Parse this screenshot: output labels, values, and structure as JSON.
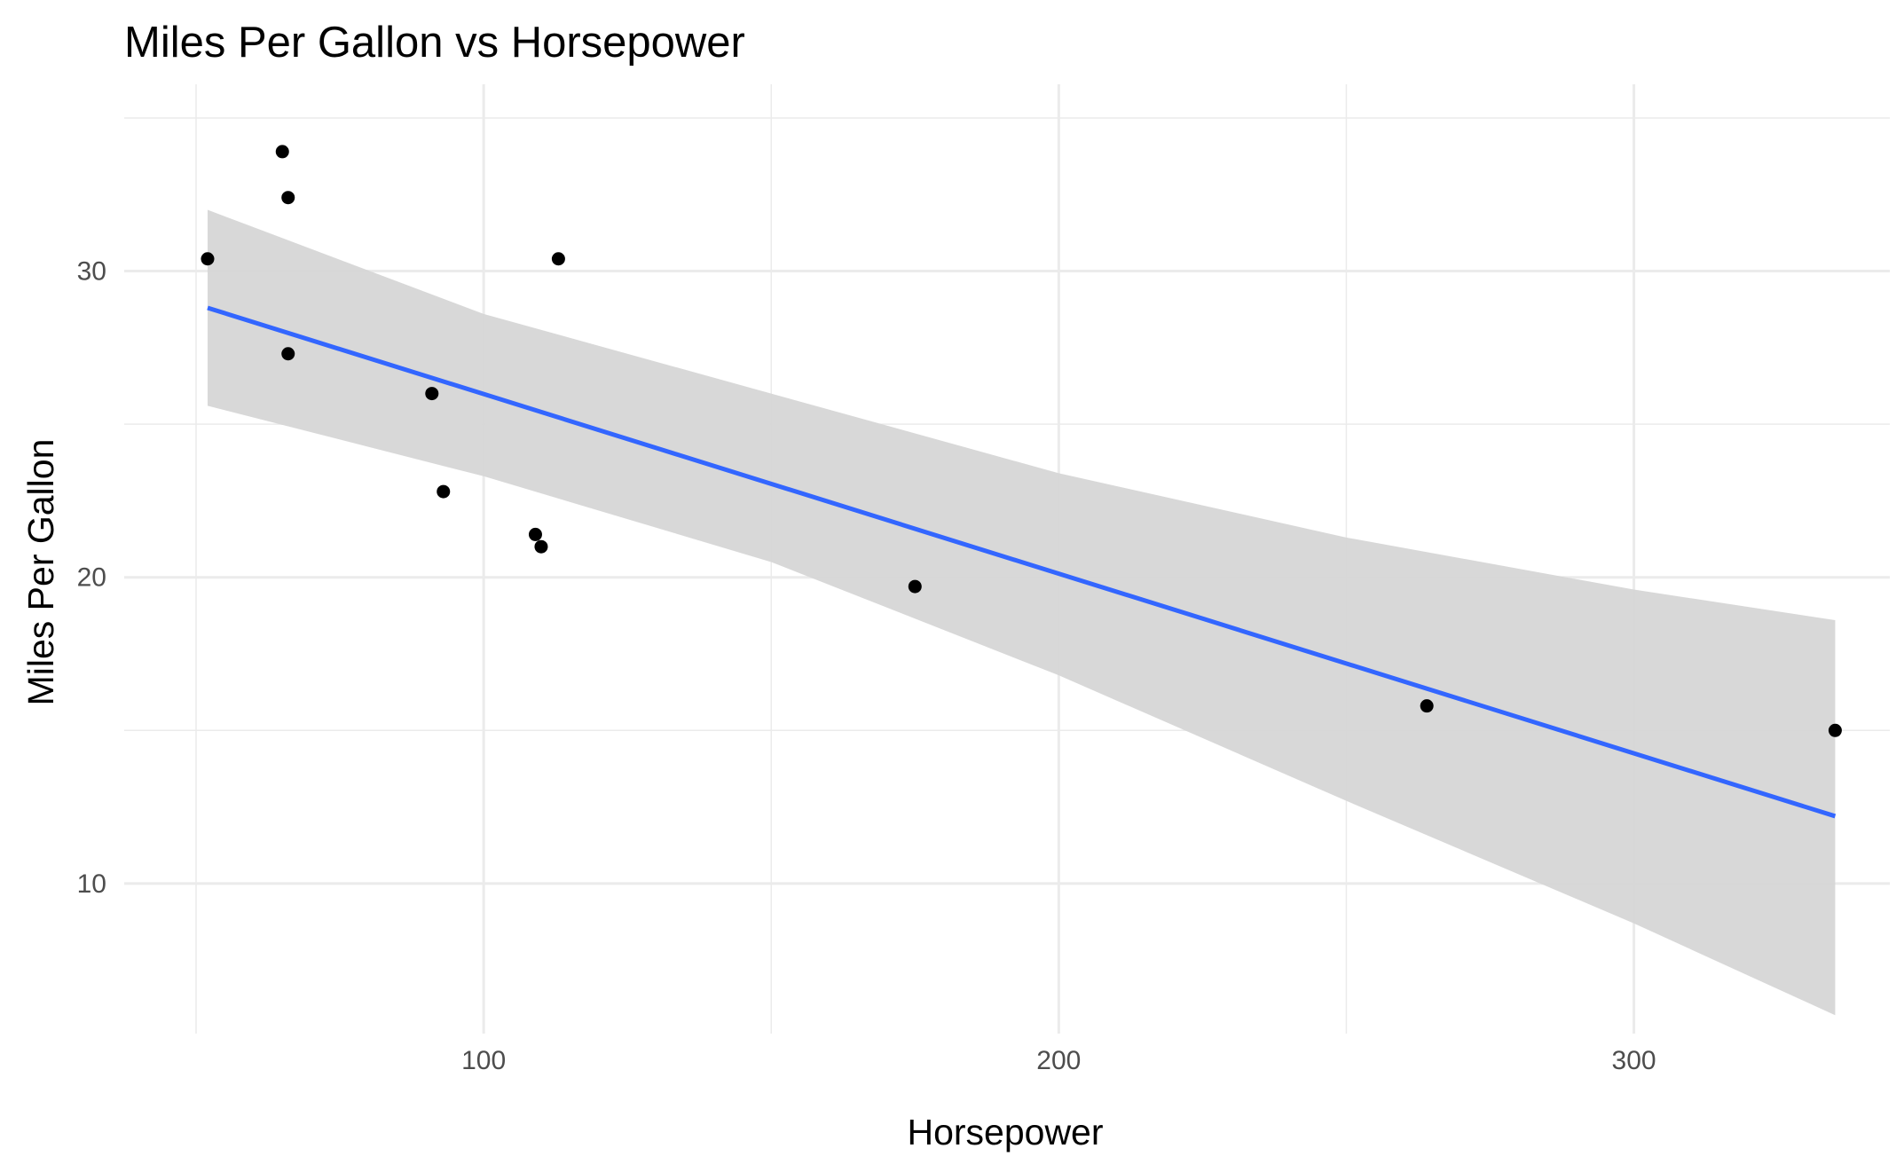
{
  "chart_data": {
    "type": "scatter",
    "title": "Miles Per Gallon vs Horsepower",
    "xlabel": "Horsepower",
    "ylabel": "Miles Per Gallon",
    "xlim": [
      37.5,
      344.5
    ],
    "ylim": [
      5.1,
      36.1
    ],
    "x_ticks": [
      100,
      200,
      300
    ],
    "y_ticks": [
      10,
      20,
      30
    ],
    "x_minor": [
      50,
      150,
      250
    ],
    "y_minor": [
      15,
      25,
      35
    ],
    "grid": true,
    "legend": "none",
    "points": [
      {
        "x": 52,
        "y": 30.4
      },
      {
        "x": 65,
        "y": 33.9
      },
      {
        "x": 66,
        "y": 32.4
      },
      {
        "x": 66,
        "y": 27.3
      },
      {
        "x": 91,
        "y": 26.0
      },
      {
        "x": 93,
        "y": 22.8
      },
      {
        "x": 109,
        "y": 21.4
      },
      {
        "x": 110,
        "y": 21.0
      },
      {
        "x": 113,
        "y": 30.4
      },
      {
        "x": 175,
        "y": 19.7
      },
      {
        "x": 264,
        "y": 15.8
      },
      {
        "x": 335,
        "y": 15.0
      }
    ],
    "trend_line": {
      "method": "lm",
      "x": [
        52,
        335
      ],
      "y": [
        28.8,
        12.2
      ]
    },
    "confidence_band": {
      "x": [
        52,
        100,
        150,
        200,
        250,
        300,
        335
      ],
      "lower": [
        25.6,
        23.3,
        20.5,
        16.8,
        12.7,
        8.7,
        5.7
      ],
      "upper": [
        32.0,
        28.6,
        26.0,
        23.4,
        21.3,
        19.6,
        18.6
      ]
    },
    "colors": {
      "points": "#000000",
      "trend_line": "#3366ff",
      "band": "#d6d6d6",
      "grid": "#ebebeb"
    }
  }
}
